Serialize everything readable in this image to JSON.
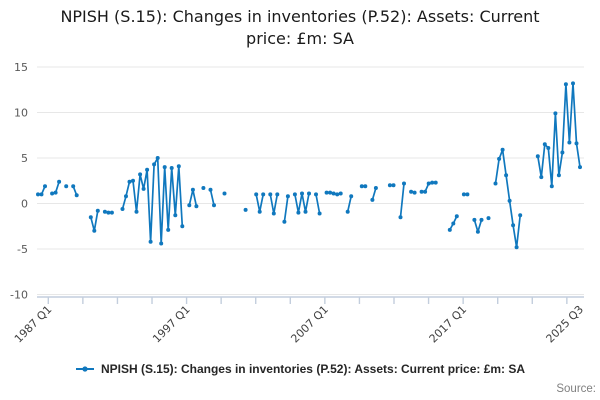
{
  "title": {
    "line1": "NPISH (S.15): Changes in inventories (P.52): Assets: Current",
    "line2": "price: £m: SA"
  },
  "legend": {
    "label": "NPISH (S.15): Changes in inventories (P.52): Assets: Current price: £m: SA"
  },
  "source": {
    "label": "Source:"
  },
  "colors": {
    "series": "#1078be",
    "grid": "#e7e7e7",
    "axis": "#c3cedd",
    "tick_label": "#595959",
    "xtick_label": "#404040"
  },
  "chart_data": {
    "type": "line",
    "title": "NPISH (S.15): Changes in inventories (P.52): Assets: Current price: £m: SA",
    "xlabel": "",
    "ylabel": "",
    "x_start": "1987 Q1",
    "x_end": "2025 Q3",
    "frequency": "quarterly",
    "ylim": [
      -10,
      15
    ],
    "yticks": [
      15,
      10,
      5,
      0,
      -5,
      -10
    ],
    "xtick_labels": [
      "1987 Q1",
      "1997 Q1",
      "2007 Q1",
      "2017 Q1",
      "2025 Q3"
    ],
    "grid": true,
    "legend_position": "bottom",
    "markers": true,
    "missing_values_shown_as_gaps": true,
    "series": [
      {
        "name": "NPISH (S.15): Changes in inventories (P.52): Assets: Current price: £m: SA",
        "color": "#1078be",
        "values": [
          1.0,
          1.0,
          1.9,
          null,
          1.1,
          1.2,
          2.4,
          null,
          1.9,
          null,
          1.9,
          0.9,
          null,
          null,
          null,
          -1.5,
          -3.0,
          -0.8,
          null,
          -0.9,
          -1.0,
          -1.0,
          null,
          null,
          -0.6,
          0.8,
          2.4,
          2.5,
          -0.9,
          3.2,
          1.6,
          3.7,
          -4.2,
          4.3,
          5.0,
          -4.4,
          4.0,
          -2.9,
          3.9,
          -1.3,
          4.1,
          -2.5,
          null,
          -0.2,
          1.5,
          -0.3,
          null,
          1.7,
          null,
          1.5,
          -0.2,
          null,
          null,
          1.1,
          null,
          null,
          null,
          null,
          null,
          -0.7,
          null,
          null,
          1.0,
          -0.9,
          1.0,
          null,
          1.0,
          -1.1,
          1.0,
          null,
          -2.0,
          0.8,
          null,
          1.0,
          -1.0,
          1.1,
          -0.9,
          1.1,
          null,
          1.0,
          -1.1,
          null,
          1.2,
          1.2,
          1.1,
          1.0,
          1.1,
          null,
          -0.9,
          0.8,
          null,
          null,
          1.9,
          1.9,
          null,
          0.4,
          1.7,
          null,
          null,
          null,
          2.0,
          2.0,
          null,
          -1.5,
          2.2,
          null,
          1.3,
          1.2,
          null,
          1.3,
          1.3,
          2.2,
          2.3,
          2.3,
          null,
          null,
          null,
          -2.9,
          -2.2,
          -1.4,
          null,
          1.0,
          1.0,
          null,
          -1.8,
          -3.1,
          -1.8,
          null,
          -1.6,
          null,
          2.2,
          4.9,
          5.9,
          3.1,
          0.3,
          -2.4,
          -4.8,
          -1.3,
          null,
          null,
          null,
          null,
          5.2,
          2.9,
          6.5,
          6.1,
          1.9,
          9.9,
          3.1,
          5.6,
          13.1,
          6.7,
          13.2,
          6.6,
          4.0
        ]
      }
    ]
  }
}
